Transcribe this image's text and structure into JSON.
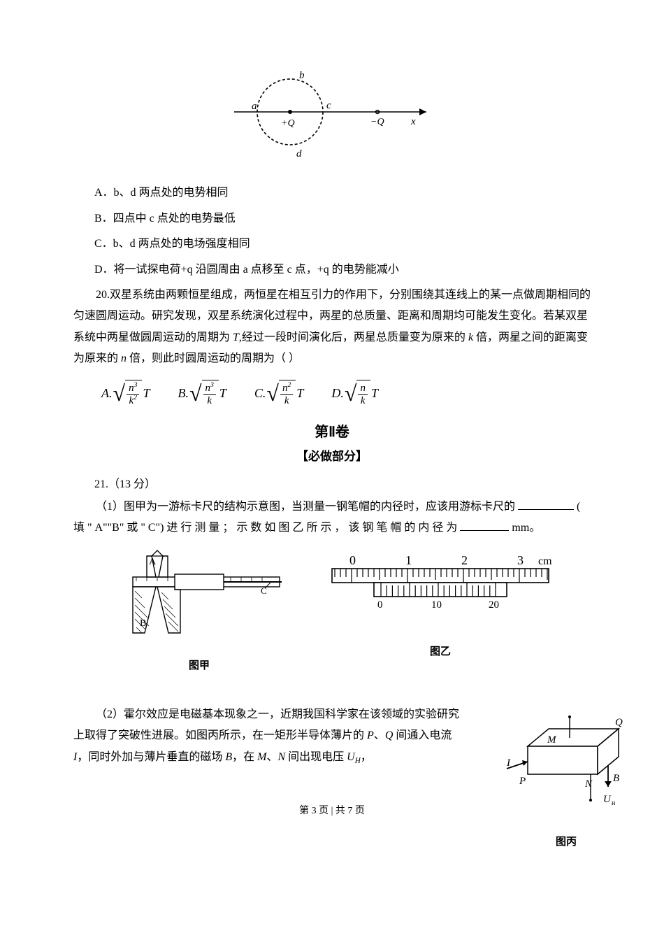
{
  "fig19": {
    "labels": {
      "a": "a",
      "b": "b",
      "c": "c",
      "d": "d",
      "plusQ": "+Q",
      "minusQ": "−Q",
      "x": "x"
    }
  },
  "q19_options": {
    "A": "A．b、d 两点处的电势相同",
    "B": "B．四点中 c 点处的电势最低",
    "C": "C．b、d 两点处的电场强度相同",
    "D": "D．将一试探电荷+q 沿圆周由 a 点移至 c 点，+q 的电势能减小"
  },
  "q20": {
    "text_1": "20.双星系统由两颗恒星组成，两恒星在相互引力的作用下，分别围绕其连线上的某一点做周期相同的匀速圆周运动。研究发现，双星系统演化过程中，两星的总质量、距离和周期均可能发生变化。若某双星系统中两星做圆周运动的周期为 ",
    "T": "T",
    "text_2": ",经过一段时间演化后，两星总质量变为原来的 ",
    "k": "k",
    "text_3": " 倍，两星之间的距离变为原来的 ",
    "n": "n",
    "text_4": " 倍，则此时圆周运动的周期为（   ）"
  },
  "formulas": {
    "A": {
      "label": "A.",
      "num": "n",
      "num_sup": "3",
      "den": "k",
      "den_sup": "2"
    },
    "B": {
      "label": "B.",
      "num": "n",
      "num_sup": "3",
      "den": "k",
      "den_sup": ""
    },
    "C": {
      "label": "C.",
      "num": "n",
      "num_sup": "2",
      "den": "k",
      "den_sup": ""
    },
    "D": {
      "label": "D.",
      "num": "n",
      "num_sup": "",
      "den": "k",
      "den_sup": ""
    },
    "trail": "T"
  },
  "section": {
    "title": "第Ⅱ卷",
    "sub": "【必做部分】"
  },
  "q21": {
    "head": "21.（13 分）",
    "p1_a": "（1）图甲为一游标卡尺的结构示意图，当测量一钢笔帽的内径时，应该用游标卡尺的",
    "p1_b": "( 填 \" A\"\"B\" 或 \" C\") 进 行 测 量 ； 示 数 如 图 乙 所 示 ， 该 钢 笔 帽 的 内 径 为",
    "p1_c": "mm。"
  },
  "caliper": {
    "labelA": "A",
    "labelB": "B",
    "labelC": "C",
    "jia": "图甲",
    "scale_cm": "cm",
    "scale_main": [
      "0",
      "1",
      "2",
      "3"
    ],
    "scale_vernier": [
      "0",
      "10",
      "20"
    ],
    "yi": "图乙"
  },
  "hall": {
    "t1": "（2）霍尔效应是电磁基本现象之一，近期我国科学家在该领域的实验研究上取得了突破性进展。如图丙所示，在一矩形半导体薄片的 ",
    "P": "P",
    "t2": "、",
    "Q": "Q",
    "t3": " 间通入电流 ",
    "I": "I",
    "t4": "，同时外加与薄片垂直的磁场 ",
    "B": "B",
    "t5": "，在 ",
    "M": "M",
    "t6": "、",
    "N": "N",
    "t7": " 间出现电压 ",
    "U": "U",
    "Hs": "H",
    "t8": "，",
    "fig_labels": {
      "P": "P",
      "Q": "Q",
      "M": "M",
      "N": "N",
      "I": "I",
      "B": "B",
      "U": "Uн"
    },
    "bing": "图丙"
  },
  "footer": "第 3 页 | 共 7 页"
}
